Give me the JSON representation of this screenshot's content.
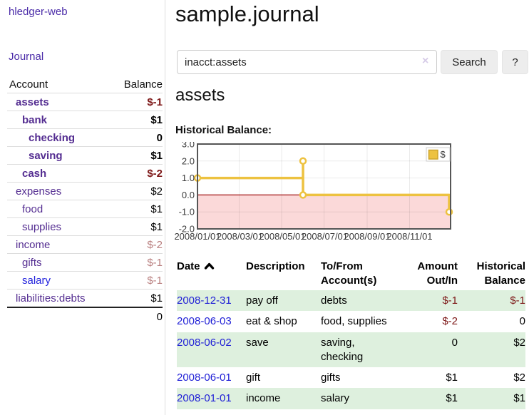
{
  "header": {
    "title": "sample.journal"
  },
  "sidebar": {
    "app_title": "hledger-web",
    "nav": [
      {
        "label": "Journal"
      }
    ],
    "accounts_table": {
      "headers": [
        "Account",
        "Balance"
      ],
      "rows": [
        {
          "name": "assets",
          "depth": 1,
          "bold": true,
          "link": "purple",
          "balance": "$-1",
          "neg": "dark"
        },
        {
          "name": "bank",
          "depth": 2,
          "bold": true,
          "link": "purple",
          "balance": "$1",
          "neg": "none"
        },
        {
          "name": "checking",
          "depth": 3,
          "bold": true,
          "link": "purple",
          "balance": "0",
          "neg": "none"
        },
        {
          "name": "saving",
          "depth": 3,
          "bold": true,
          "link": "purple",
          "balance": "$1",
          "neg": "none"
        },
        {
          "name": "cash",
          "depth": 2,
          "bold": true,
          "link": "purple",
          "balance": "$-2",
          "neg": "dark"
        },
        {
          "name": "expenses",
          "depth": 1,
          "bold": false,
          "link": "purple",
          "balance": "$2",
          "neg": "none"
        },
        {
          "name": "food",
          "depth": 2,
          "bold": false,
          "link": "purple",
          "balance": "$1",
          "neg": "none"
        },
        {
          "name": "supplies",
          "depth": 2,
          "bold": false,
          "link": "purple",
          "balance": "$1",
          "neg": "none"
        },
        {
          "name": "income",
          "depth": 1,
          "bold": false,
          "link": "purple",
          "balance": "$-2",
          "neg": "faded"
        },
        {
          "name": "gifts",
          "depth": 2,
          "bold": false,
          "link": "purple",
          "balance": "$-1",
          "neg": "faded"
        },
        {
          "name": "salary",
          "depth": 2,
          "bold": false,
          "link": "blue",
          "balance": "$-1",
          "neg": "faded"
        },
        {
          "name": "liabilities:debts",
          "depth": 1,
          "bold": false,
          "link": "purple",
          "balance": "$1",
          "neg": "none"
        }
      ],
      "total": "0"
    }
  },
  "search": {
    "value": "inacct:assets",
    "clear_icon": "×",
    "button_label": "Search",
    "help_label": "?"
  },
  "account_page": {
    "heading": "assets",
    "chart_label": "Historical Balance:"
  },
  "chart_data": {
    "type": "line",
    "title": "Historical Balance of assets",
    "step": true,
    "series": [
      {
        "name": "$",
        "color": "#edc240",
        "points": [
          {
            "x": "2008-01-01",
            "y": 1
          },
          {
            "x": "2008-06-01",
            "y": 2
          },
          {
            "x": "2008-06-03",
            "y": 0
          },
          {
            "x": "2008-12-31",
            "y": -1
          }
        ]
      }
    ],
    "ylim": [
      -2,
      3
    ],
    "yticks": [
      3.0,
      2.0,
      1.0,
      0.0,
      -1.0,
      -2.0
    ],
    "ytick_labels": [
      "3.0",
      "2.0",
      "1.0",
      "0.0",
      "-1.0",
      "-2.0"
    ],
    "xticks": [
      "2008/01/01",
      "2008/03/01",
      "2008/05/01",
      "2008/07/01",
      "2008/09/01",
      "2008/11/01"
    ],
    "grid": true,
    "negative_region_color": "#fbd9d9",
    "zero_line_color": "#a01010",
    "legend": {
      "label": "$",
      "position": "top-right"
    }
  },
  "register_table": {
    "headers": [
      {
        "label": "Date",
        "label2": "",
        "align": "left",
        "sorted": "asc"
      },
      {
        "label": "Description",
        "label2": "",
        "align": "left"
      },
      {
        "label": "To/From",
        "label2": "Account(s)",
        "align": "left"
      },
      {
        "label": "Amount",
        "label2": "Out/In",
        "align": "right"
      },
      {
        "label": "Historical",
        "label2": "Balance",
        "align": "right"
      }
    ],
    "rows": [
      {
        "date": "2008-12-31",
        "description": "pay off",
        "accounts": "debts",
        "amount": "$-1",
        "amount_neg": true,
        "balance": "$-1",
        "balance_neg": true
      },
      {
        "date": "2008-06-03",
        "description": "eat & shop",
        "accounts": "food, supplies",
        "amount": "$-2",
        "amount_neg": true,
        "balance": "0",
        "balance_neg": false
      },
      {
        "date": "2008-06-02",
        "description": "save",
        "accounts": "saving, checking",
        "amount": "0",
        "amount_neg": false,
        "balance": "$2",
        "balance_neg": false
      },
      {
        "date": "2008-06-01",
        "description": "gift",
        "accounts": "gifts",
        "amount": "$1",
        "amount_neg": false,
        "balance": "$2",
        "balance_neg": false
      },
      {
        "date": "2008-01-01",
        "description": "income",
        "accounts": "salary",
        "amount": "$1",
        "amount_neg": false,
        "balance": "$1",
        "balance_neg": false
      }
    ]
  },
  "colors": {
    "link_purple": "#542d91",
    "link_blue": "#2222dd",
    "date_link_blue": "#1f1fd6",
    "negative_dark_red": "#7d1717",
    "negative_faded_red": "#b97f7f",
    "row_stripe_green": "#def0de",
    "chart_line_gold": "#edc240",
    "chart_negative_pink": "#fbd9d9",
    "chart_zero_line": "#a01010"
  }
}
